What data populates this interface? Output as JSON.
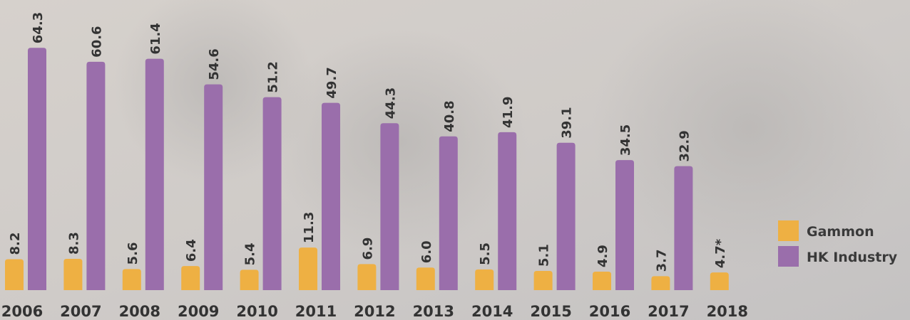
{
  "chart_data": {
    "type": "bar",
    "categories": [
      "2006",
      "2007",
      "2008",
      "2009",
      "2010",
      "2011",
      "2012",
      "2013",
      "2014",
      "2015",
      "2016",
      "2017",
      "2018"
    ],
    "series": [
      {
        "name": "Gammon",
        "color": "#eeb043",
        "values": [
          8.2,
          8.3,
          5.6,
          6.4,
          5.4,
          11.3,
          6.9,
          6.0,
          5.5,
          5.1,
          4.9,
          3.7,
          4.7
        ],
        "value_labels": [
          "8.2",
          "8.3",
          "5.6",
          "6.4",
          "5.4",
          "11.3",
          "6.9",
          "6.0",
          "5.5",
          "5.1",
          "4.9",
          "3.7",
          "4.7*"
        ]
      },
      {
        "name": "HK Industry",
        "color": "#9a6eab",
        "values": [
          64.3,
          60.6,
          61.4,
          54.6,
          51.2,
          49.7,
          44.3,
          40.8,
          41.9,
          39.1,
          34.5,
          32.9,
          null
        ]
      }
    ],
    "legend": "right"
  }
}
